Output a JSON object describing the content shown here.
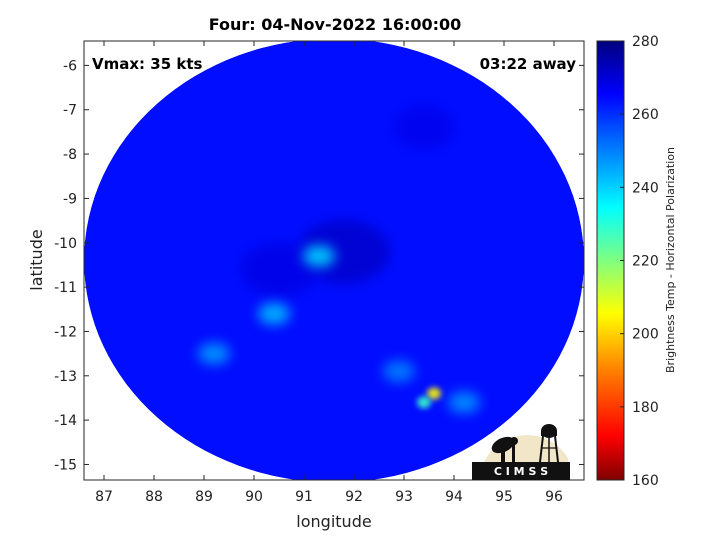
{
  "chart_data": {
    "type": "heatmap",
    "title": "Four: 04-Nov-2022 16:00:00",
    "xlabel": "longitude",
    "ylabel": "latitude",
    "xlim": [
      86.6,
      96.6
    ],
    "ylim": [
      -15.35,
      -5.45
    ],
    "x_ticks": [
      87,
      88,
      89,
      90,
      91,
      92,
      93,
      94,
      95,
      96
    ],
    "y_ticks": [
      -6,
      -7,
      -8,
      -9,
      -10,
      -11,
      -12,
      -13,
      -14,
      -15
    ],
    "grid": false,
    "annotations": {
      "top_left": "Vmax: 35 kts",
      "top_right": "03:22 away"
    },
    "colorbar": {
      "label": "Brightness Temp - Horizontal Polarization",
      "range": [
        160,
        280
      ],
      "ticks": [
        160,
        180,
        200,
        220,
        240,
        260,
        280
      ],
      "colormap": "jet"
    },
    "field": {
      "background_value": 264,
      "swath_center": [
        91.6,
        -10.4
      ],
      "cold_areas": [
        {
          "lon": 91.3,
          "lat": -10.3,
          "value": 240
        },
        {
          "lon": 90.4,
          "lat": -11.6,
          "value": 243
        },
        {
          "lon": 89.2,
          "lat": -12.5,
          "value": 247
        },
        {
          "lon": 93.6,
          "lat": -13.4,
          "value": 205
        },
        {
          "lon": 93.4,
          "lat": -13.6,
          "value": 228
        },
        {
          "lon": 94.2,
          "lat": -13.6,
          "value": 248
        },
        {
          "lon": 92.9,
          "lat": -12.9,
          "value": 250
        }
      ],
      "warm_areas": [
        {
          "lon": 91.8,
          "lat": -10.2,
          "value": 272
        },
        {
          "lon": 90.5,
          "lat": -10.6,
          "value": 269
        },
        {
          "lon": 93.4,
          "lat": -7.4,
          "value": 268
        }
      ]
    }
  },
  "logo": {
    "text": "C I M S S"
  }
}
